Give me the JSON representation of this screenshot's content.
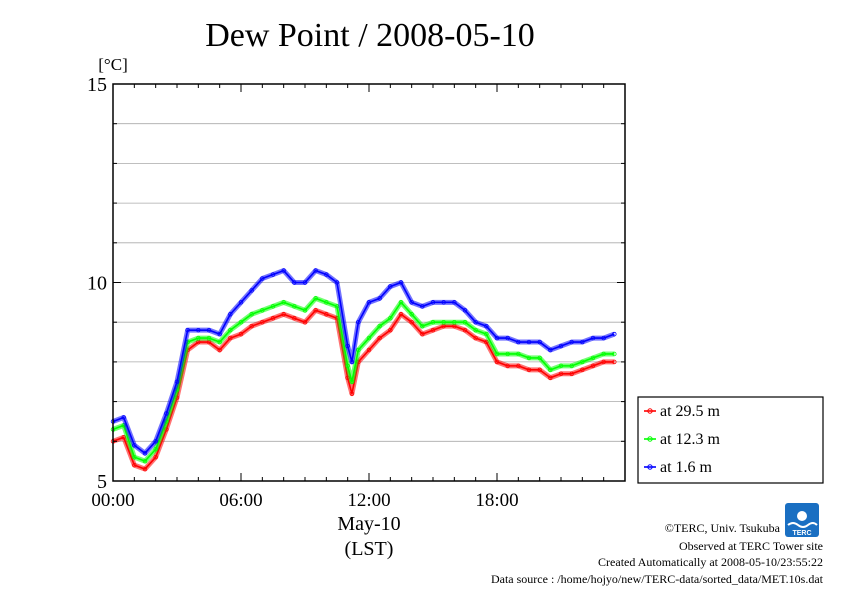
{
  "chart_data": {
    "type": "line",
    "title": "Dew Point / 2008-05-10",
    "y_unit": "[°C]",
    "ylim": [
      5,
      15
    ],
    "y_ticks": [
      "5",
      "10",
      "15"
    ],
    "xlim": [
      0,
      24
    ],
    "x_ticks": [
      "00:00",
      "06:00",
      "12:00",
      "18:00"
    ],
    "x_date": "May-10",
    "x_timezone": "(LST)",
    "grid": true,
    "legend_position": "bottom-right",
    "series": [
      {
        "name": "at 29.5 m",
        "color": "#ff0000",
        "x": [
          0.0,
          0.5,
          1.0,
          1.5,
          2.0,
          2.5,
          3.0,
          3.5,
          4.0,
          4.5,
          5.0,
          5.5,
          6.0,
          6.5,
          7.0,
          7.5,
          8.0,
          8.5,
          9.0,
          9.5,
          10.0,
          10.5,
          11.0,
          11.2,
          11.5,
          12.0,
          12.5,
          13.0,
          13.5,
          14.0,
          14.5,
          15.0,
          15.5,
          16.0,
          16.5,
          17.0,
          17.5,
          18.0,
          18.5,
          19.0,
          19.5,
          20.0,
          20.5,
          21.0,
          21.5,
          22.0,
          22.5,
          23.0,
          23.5
        ],
        "values": [
          6.0,
          6.1,
          5.4,
          5.3,
          5.6,
          6.3,
          7.1,
          8.3,
          8.5,
          8.5,
          8.3,
          8.6,
          8.7,
          8.9,
          9.0,
          9.1,
          9.2,
          9.1,
          9.0,
          9.3,
          9.2,
          9.1,
          7.6,
          7.2,
          8.0,
          8.3,
          8.6,
          8.8,
          9.2,
          9.0,
          8.7,
          8.8,
          8.9,
          8.9,
          8.8,
          8.6,
          8.5,
          8.0,
          7.9,
          7.9,
          7.8,
          7.8,
          7.6,
          7.7,
          7.7,
          7.8,
          7.9,
          8.0,
          8.0
        ]
      },
      {
        "name": "at 12.3 m",
        "color": "#00ff00",
        "x": [
          0.0,
          0.5,
          1.0,
          1.5,
          2.0,
          2.5,
          3.0,
          3.5,
          4.0,
          4.5,
          5.0,
          5.5,
          6.0,
          6.5,
          7.0,
          7.5,
          8.0,
          8.5,
          9.0,
          9.5,
          10.0,
          10.5,
          11.0,
          11.2,
          11.5,
          12.0,
          12.5,
          13.0,
          13.5,
          14.0,
          14.5,
          15.0,
          15.5,
          16.0,
          16.5,
          17.0,
          17.5,
          18.0,
          18.5,
          19.0,
          19.5,
          20.0,
          20.5,
          21.0,
          21.5,
          22.0,
          22.5,
          23.0,
          23.5
        ],
        "values": [
          6.3,
          6.4,
          5.6,
          5.5,
          5.8,
          6.5,
          7.3,
          8.5,
          8.6,
          8.6,
          8.5,
          8.8,
          9.0,
          9.2,
          9.3,
          9.4,
          9.5,
          9.4,
          9.3,
          9.6,
          9.5,
          9.4,
          7.9,
          7.5,
          8.3,
          8.6,
          8.9,
          9.1,
          9.5,
          9.2,
          8.9,
          9.0,
          9.0,
          9.0,
          9.0,
          8.8,
          8.7,
          8.2,
          8.2,
          8.2,
          8.1,
          8.1,
          7.8,
          7.9,
          7.9,
          8.0,
          8.1,
          8.2,
          8.2
        ]
      },
      {
        "name": "at 1.6 m",
        "color": "#0000ff",
        "x": [
          0.0,
          0.5,
          1.0,
          1.5,
          2.0,
          2.5,
          3.0,
          3.5,
          4.0,
          4.5,
          5.0,
          5.5,
          6.0,
          6.5,
          7.0,
          7.5,
          8.0,
          8.5,
          9.0,
          9.5,
          10.0,
          10.5,
          11.0,
          11.2,
          11.5,
          12.0,
          12.5,
          13.0,
          13.5,
          14.0,
          14.5,
          15.0,
          15.5,
          16.0,
          16.5,
          17.0,
          17.5,
          18.0,
          18.5,
          19.0,
          19.5,
          20.0,
          20.5,
          21.0,
          21.5,
          22.0,
          22.5,
          23.0,
          23.5
        ],
        "values": [
          6.5,
          6.6,
          5.9,
          5.7,
          6.0,
          6.7,
          7.5,
          8.8,
          8.8,
          8.8,
          8.7,
          9.2,
          9.5,
          9.8,
          10.1,
          10.2,
          10.3,
          10.0,
          10.0,
          10.3,
          10.2,
          10.0,
          8.4,
          8.0,
          9.0,
          9.5,
          9.6,
          9.9,
          10.0,
          9.5,
          9.4,
          9.5,
          9.5,
          9.5,
          9.3,
          9.0,
          8.9,
          8.6,
          8.6,
          8.5,
          8.5,
          8.5,
          8.3,
          8.4,
          8.5,
          8.5,
          8.6,
          8.6,
          8.7
        ]
      }
    ]
  },
  "credits": {
    "copyright": "©TERC, Univ. Tsukuba",
    "observed": "Observed at TERC Tower site",
    "created": "Created Automatically at 2008-05-10/23:55:22",
    "source": "Data source : /home/hojyo/new/TERC-data/sorted_data/MET.10s.dat",
    "logo_text": "TERC",
    "logo_color": "#1a6fc2"
  }
}
